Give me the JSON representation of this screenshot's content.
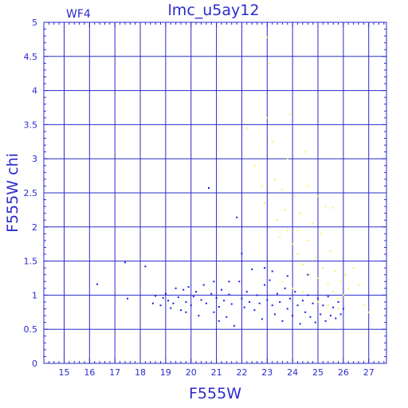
{
  "chart_data": {
    "type": "scatter",
    "title": "lmc_u5ay12",
    "panel_label": "WF4",
    "xlabel": "F555W",
    "ylabel": "F555W  chi",
    "xlim": [
      14.2,
      27.7
    ],
    "ylim": [
      0,
      5
    ],
    "xticks": [
      15,
      16,
      17,
      18,
      19,
      20,
      21,
      22,
      23,
      24,
      25,
      26,
      27
    ],
    "yticks": [
      0,
      0.5,
      1,
      1.5,
      2,
      2.5,
      3,
      3.5,
      4,
      4.5,
      5
    ],
    "ytick_labels": [
      "0",
      "0.5",
      "1",
      "1.5",
      "2",
      "2.5",
      "3",
      "3.5",
      "4",
      "4.5",
      "5"
    ],
    "grid": true,
    "colors": {
      "axes": "#2a2acc",
      "blue_points": "#1a1ae6",
      "yellow_points": "#f2f25a"
    },
    "series": [
      {
        "color": "#1a1ae6",
        "points": [
          [
            16.3,
            1.16
          ],
          [
            17.4,
            1.48
          ],
          [
            17.5,
            0.95
          ],
          [
            18.2,
            1.42
          ],
          [
            18.5,
            0.88
          ],
          [
            18.6,
            0.99
          ],
          [
            18.8,
            0.85
          ],
          [
            18.9,
            0.96
          ],
          [
            19.0,
            1.02
          ],
          [
            19.1,
            0.92
          ],
          [
            19.2,
            0.81
          ],
          [
            19.3,
            0.88
          ],
          [
            19.4,
            1.1
          ],
          [
            19.5,
            0.97
          ],
          [
            19.6,
            0.78
          ],
          [
            19.7,
            1.08
          ],
          [
            19.8,
            0.9
          ],
          [
            19.9,
            1.12
          ],
          [
            20.0,
            0.85
          ],
          [
            20.1,
            0.98
          ],
          [
            20.2,
            1.05
          ],
          [
            20.3,
            0.7
          ],
          [
            20.4,
            0.93
          ],
          [
            20.5,
            1.15
          ],
          [
            20.6,
            0.88
          ],
          [
            20.7,
            2.57
          ],
          [
            20.8,
            1.02
          ],
          [
            20.9,
            0.75
          ],
          [
            21.0,
            0.96
          ],
          [
            21.1,
            0.83
          ],
          [
            21.2,
            1.08
          ],
          [
            21.3,
            0.92
          ],
          [
            21.4,
            0.68
          ],
          [
            21.5,
            1.01
          ],
          [
            21.6,
            0.87
          ],
          [
            21.7,
            0.55
          ],
          [
            21.8,
            2.14
          ],
          [
            21.9,
            1.2
          ],
          [
            22.0,
            0.95
          ],
          [
            22.0,
            1.61
          ],
          [
            22.1,
            0.82
          ],
          [
            22.2,
            1.05
          ],
          [
            22.3,
            0.9
          ],
          [
            22.4,
            1.38
          ],
          [
            22.5,
            0.78
          ],
          [
            22.6,
            1.0
          ],
          [
            22.7,
            0.88
          ],
          [
            22.8,
            0.65
          ],
          [
            22.9,
            1.15
          ],
          [
            23.0,
            0.93
          ],
          [
            23.1,
            1.22
          ],
          [
            23.2,
            0.85
          ],
          [
            23.3,
            0.72
          ],
          [
            23.4,
            1.02
          ],
          [
            23.5,
            0.9
          ],
          [
            23.6,
            0.62
          ],
          [
            23.7,
            1.1
          ],
          [
            23.8,
            0.8
          ],
          [
            23.9,
            0.95
          ],
          [
            24.0,
            0.7
          ],
          [
            24.1,
            1.05
          ],
          [
            24.2,
            0.85
          ],
          [
            24.3,
            0.58
          ],
          [
            24.4,
            0.92
          ],
          [
            24.5,
            0.75
          ],
          [
            24.6,
            1.0
          ],
          [
            24.7,
            0.68
          ],
          [
            24.8,
            0.88
          ],
          [
            24.9,
            0.6
          ],
          [
            25.0,
            0.95
          ],
          [
            25.1,
            0.72
          ],
          [
            25.2,
            0.85
          ],
          [
            25.3,
            0.62
          ],
          [
            25.4,
            0.98
          ],
          [
            25.5,
            0.7
          ],
          [
            25.6,
            0.82
          ],
          [
            25.7,
            0.66
          ],
          [
            25.8,
            0.9
          ],
          [
            25.9,
            0.72
          ],
          [
            26.0,
            0.8
          ],
          [
            23.2,
            1.35
          ],
          [
            23.8,
            1.28
          ],
          [
            24.6,
            1.3
          ],
          [
            22.9,
            1.4
          ],
          [
            21.5,
            1.2
          ],
          [
            20.9,
            1.2
          ],
          [
            21.1,
            0.62
          ],
          [
            19.8,
            0.75
          ]
        ]
      },
      {
        "color": "#f2f25a",
        "points": [
          [
            22.2,
            3.45
          ],
          [
            22.5,
            2.9
          ],
          [
            22.8,
            2.6
          ],
          [
            22.9,
            2.35
          ],
          [
            23.0,
            4.78
          ],
          [
            23.0,
            3.6
          ],
          [
            23.1,
            4.4
          ],
          [
            23.2,
            3.25
          ],
          [
            23.3,
            2.7
          ],
          [
            23.4,
            2.1
          ],
          [
            23.5,
            1.85
          ],
          [
            23.6,
            2.55
          ],
          [
            23.7,
            2.25
          ],
          [
            23.8,
            1.95
          ],
          [
            23.9,
            3.65
          ],
          [
            24.0,
            1.75
          ],
          [
            24.1,
            2.45
          ],
          [
            24.2,
            1.6
          ],
          [
            24.3,
            2.2
          ],
          [
            24.4,
            1.45
          ],
          [
            24.5,
            3.1
          ],
          [
            24.6,
            1.8
          ],
          [
            24.7,
            1.3
          ],
          [
            24.8,
            2.05
          ],
          [
            24.9,
            1.55
          ],
          [
            25.0,
            1.25
          ],
          [
            25.1,
            1.9
          ],
          [
            25.2,
            1.4
          ],
          [
            25.3,
            2.3
          ],
          [
            25.4,
            1.15
          ],
          [
            25.5,
            1.65
          ],
          [
            25.6,
            1.05
          ],
          [
            25.7,
            1.35
          ],
          [
            25.8,
            0.95
          ],
          [
            25.9,
            1.2
          ],
          [
            26.0,
            1.0
          ],
          [
            26.1,
            1.3
          ],
          [
            26.2,
            1.1
          ],
          [
            26.4,
            1.4
          ],
          [
            26.6,
            1.15
          ],
          [
            26.8,
            0.85
          ],
          [
            27.0,
            0.75
          ],
          [
            23.6,
            1.2
          ],
          [
            24.0,
            1.1
          ],
          [
            24.4,
            1.05
          ],
          [
            25.0,
            0.9
          ],
          [
            25.4,
            0.85
          ],
          [
            25.8,
            0.8
          ],
          [
            25.6,
            2.28
          ],
          [
            25.0,
            2.45
          ],
          [
            24.2,
            1.95
          ],
          [
            23.8,
            3.0
          ],
          [
            24.6,
            2.6
          ]
        ]
      }
    ]
  }
}
